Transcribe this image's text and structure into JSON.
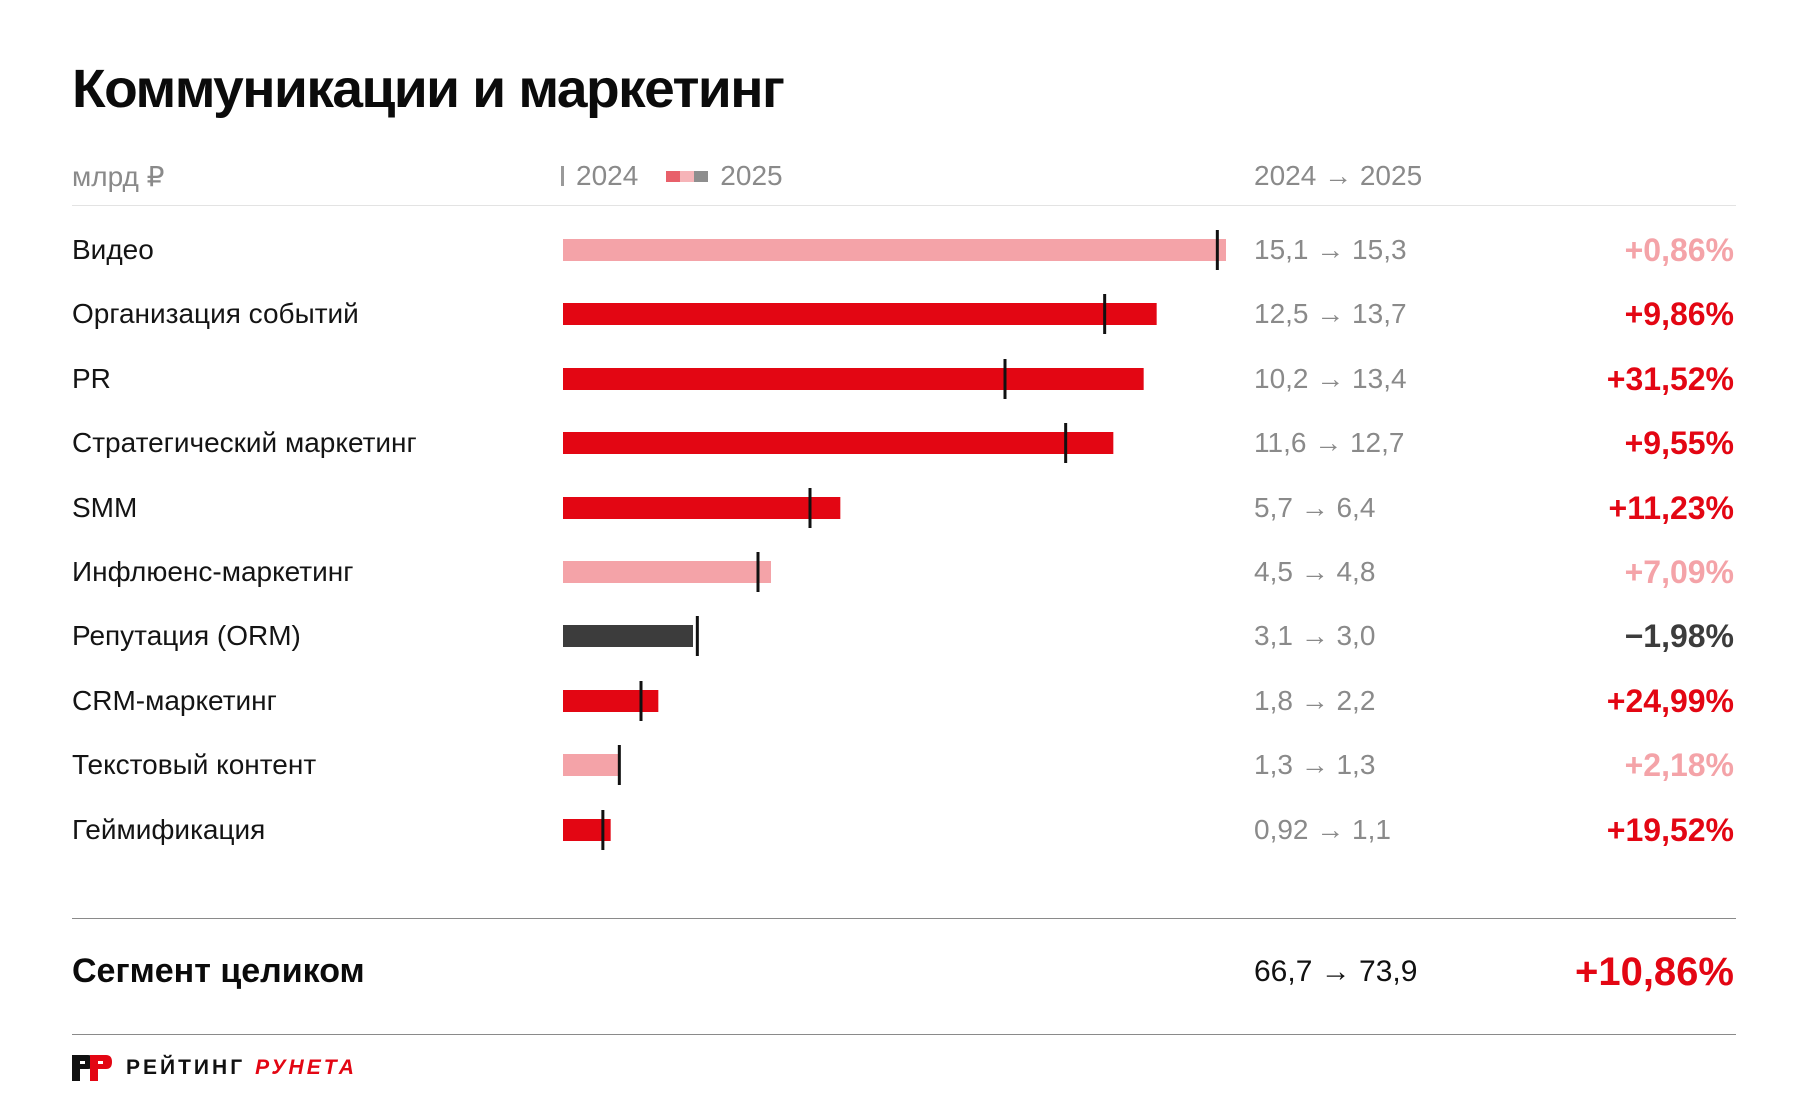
{
  "title": "Коммуникации и маркетинг",
  "header": {
    "unit": "млрд ₽",
    "legend_2024": "2024",
    "legend_2025": "2025",
    "change_header": "2024 → 2025"
  },
  "colors": {
    "up_strong": "#e30613",
    "up_weak": "#f4a3a8",
    "down": "#3c3c3c",
    "marker": "#111111",
    "legend_swatches": [
      "#e8606a",
      "#f6b4b8",
      "#8e8e8e"
    ]
  },
  "chart_data": {
    "type": "bar",
    "xlim": [
      0,
      15.3
    ],
    "categories": [
      "Видео",
      "Организация событий",
      "PR",
      "Стратегический маркетинг",
      "SMM",
      "Инфлюенс-маркетинг",
      "Репутация (ORM)",
      "CRM-маркетинг",
      "Текстовый контент",
      "Геймификация"
    ],
    "series": [
      {
        "name": "2024",
        "values": [
          15.1,
          12.5,
          10.2,
          11.6,
          5.7,
          4.5,
          3.1,
          1.8,
          1.3,
          0.92
        ]
      },
      {
        "name": "2025",
        "values": [
          15.3,
          13.7,
          13.4,
          12.7,
          6.4,
          4.8,
          3.0,
          2.2,
          1.3,
          1.1
        ]
      }
    ],
    "change_labels": [
      "15,1 → 15,3",
      "12,5 → 13,7",
      "10,2 → 13,4",
      "11,6 → 12,7",
      "5,7 → 6,4",
      "4,5 → 4,8",
      "3,1 → 3,0",
      "1,8 → 2,2",
      "1,3 → 1,3",
      "0,92 → 1,1"
    ],
    "percent_labels": [
      "+0,86%",
      "+9,86%",
      "+31,52%",
      "+9,55%",
      "+11,23%",
      "+7,09%",
      "−1,98%",
      "+24,99%",
      "+2,18%",
      "+19,52%"
    ],
    "categories_style": [
      "weak",
      "strong",
      "strong",
      "strong",
      "strong",
      "weak",
      "down",
      "strong",
      "weak",
      "strong"
    ]
  },
  "total": {
    "label": "Сегмент целиком",
    "change": "66,7 → 73,9",
    "percent": "+10,86%"
  },
  "logo": {
    "text_a": "РЕЙТИНГ",
    "text_b": "РУНЕТА"
  }
}
